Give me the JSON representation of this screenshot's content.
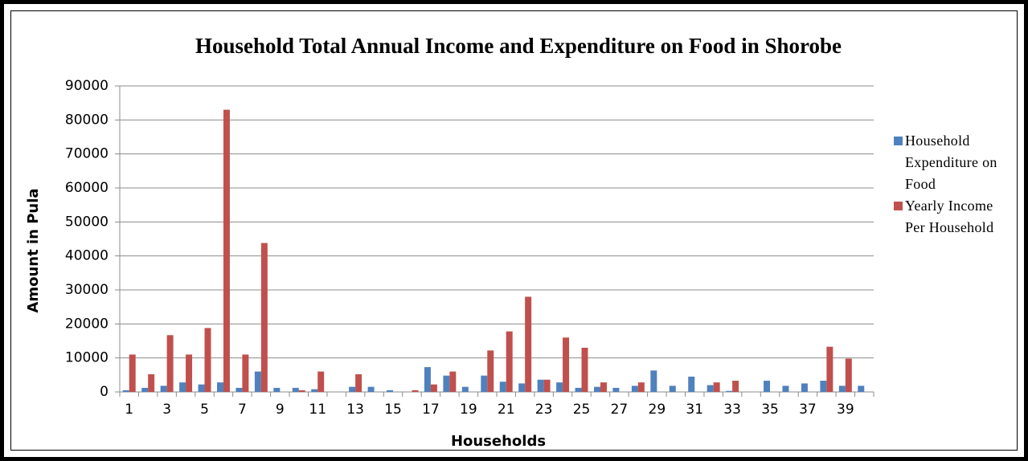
{
  "chart_data": {
    "type": "bar",
    "title": "Household Total Annual Income and Expenditure on Food in Shorobe",
    "xlabel": "Households",
    "ylabel": "Amount in Pula",
    "categories": [
      "1",
      null,
      "3",
      null,
      "5",
      null,
      "7",
      null,
      "9",
      null,
      "11",
      null,
      "13",
      null,
      "15",
      null,
      "17",
      null,
      "19",
      null,
      "21",
      null,
      "23",
      null,
      "25",
      null,
      "27",
      null,
      "29",
      null,
      "31",
      null,
      "33",
      null,
      "35",
      null,
      "37",
      null,
      "39",
      null
    ],
    "series": [
      {
        "name": "Household Expenditure on Food",
        "color": "#4f81bd",
        "values": [
          500,
          1200,
          1800,
          2800,
          2200,
          2800,
          1200,
          6000,
          1200,
          1200,
          800,
          0,
          1500,
          1500,
          500,
          0,
          7300,
          4800,
          1500,
          4800,
          3000,
          2500,
          3600,
          2800,
          1200,
          1500,
          1200,
          1800,
          6300,
          1800,
          4500,
          2000,
          300,
          0,
          3300,
          1800,
          2500,
          3300,
          1800,
          1800
        ]
      },
      {
        "name": "Yearly Income Per Household",
        "color": "#c0504d",
        "values": [
          11000,
          5200,
          16700,
          11000,
          18800,
          83000,
          11000,
          43800,
          0,
          500,
          6000,
          0,
          5200,
          0,
          0,
          500,
          2200,
          6000,
          0,
          12200,
          17800,
          28000,
          3600,
          16000,
          13000,
          2800,
          0,
          2800,
          0,
          0,
          0,
          2800,
          3300,
          0,
          0,
          0,
          0,
          13300,
          9800,
          0
        ]
      }
    ],
    "ylim": [
      0,
      90000
    ],
    "yticks": [
      0,
      10000,
      20000,
      30000,
      40000,
      50000,
      60000,
      70000,
      80000,
      90000
    ],
    "grid": true,
    "legend": "right"
  }
}
